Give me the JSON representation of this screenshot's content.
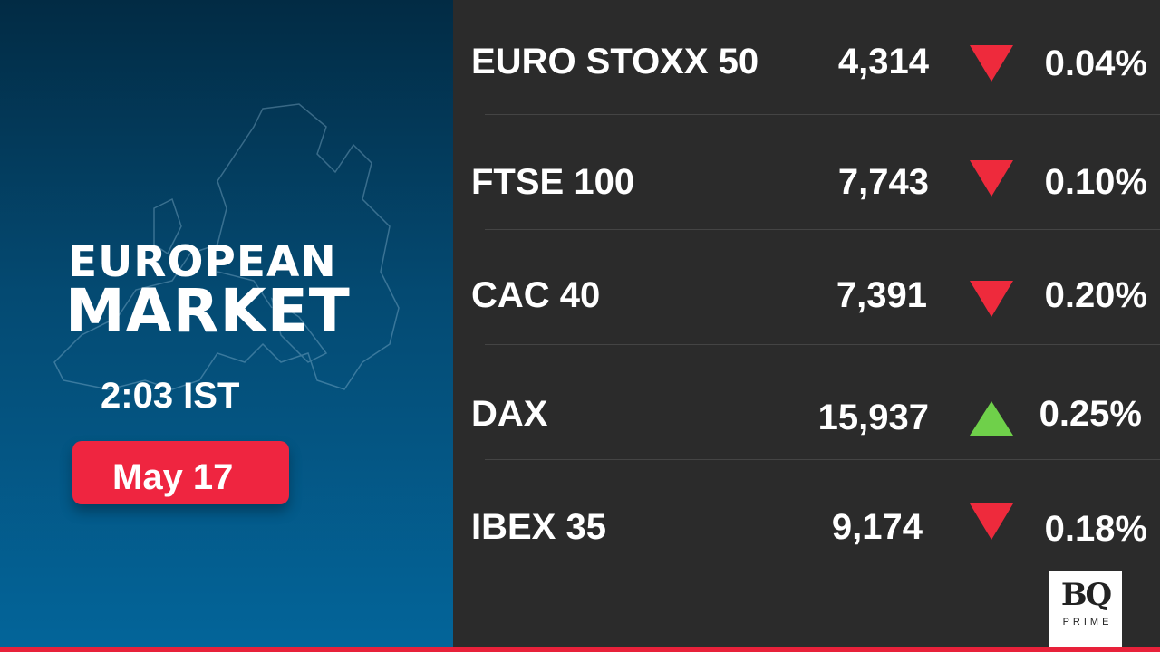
{
  "title": {
    "line1": "EUROPEAN",
    "line2": "MARKET"
  },
  "time": "2:03 IST",
  "date": "May 17",
  "indices": [
    {
      "name": "EURO STOXX 50",
      "value": "4,314",
      "direction": "down",
      "change": "0.04%"
    },
    {
      "name": "FTSE 100",
      "value": "7,743",
      "direction": "down",
      "change": "0.10%"
    },
    {
      "name": "CAC 40",
      "value": "7,391",
      "direction": "down",
      "change": "0.20%"
    },
    {
      "name": "DAX",
      "value": "15,937",
      "direction": "up",
      "change": "0.25%"
    },
    {
      "name": "IBEX 35",
      "value": "9,174",
      "direction": "down",
      "change": "0.18%"
    }
  ],
  "logo": {
    "mark": "BQ",
    "sub": "PRIME"
  },
  "colors": {
    "down": "#ee2a3c",
    "up": "#6fd04a",
    "accent": "#e8213a"
  }
}
